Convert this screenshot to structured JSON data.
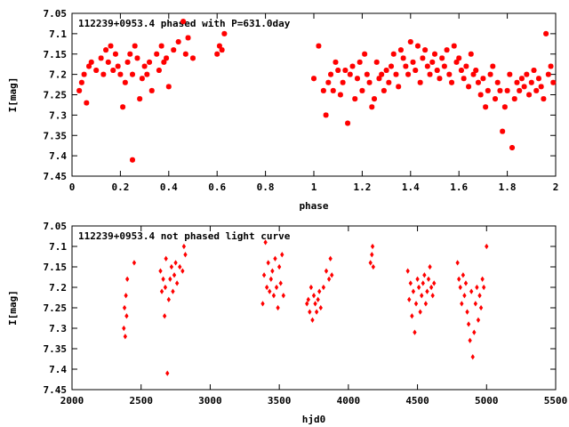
{
  "colors": {
    "points": "#ff0000",
    "axes": "#000000",
    "background": "#ffffff"
  },
  "chart_data": [
    {
      "type": "scatter",
      "title": "112239+0953.4 phased with P=631.0day",
      "xlabel": "phase",
      "ylabel": "I[mag]",
      "xlim": [
        0,
        2
      ],
      "ylim": [
        7.05,
        7.45
      ],
      "y_inverted": true,
      "grid": false,
      "legend": "none",
      "marker": "star",
      "xticks": [
        "0",
        "0.2",
        "0.4",
        "0.6",
        "0.8",
        "1",
        "1.2",
        "1.4",
        "1.6",
        "1.8",
        "2"
      ],
      "yticks": [
        "7.05",
        "7.1",
        "7.15",
        "7.2",
        "7.25",
        "7.3",
        "7.35",
        "7.4",
        "7.45"
      ],
      "x": [
        0.03,
        0.04,
        0.05,
        0.06,
        0.07,
        0.08,
        0.1,
        0.12,
        0.13,
        0.14,
        0.15,
        0.16,
        0.17,
        0.18,
        0.19,
        0.2,
        0.21,
        0.22,
        0.23,
        0.24,
        0.25,
        0.25,
        0.26,
        0.27,
        0.28,
        0.29,
        0.3,
        0.31,
        0.32,
        0.33,
        0.35,
        0.36,
        0.37,
        0.38,
        0.39,
        0.4,
        0.42,
        0.44,
        0.46,
        0.47,
        0.48,
        0.5,
        0.6,
        0.61,
        0.62,
        0.63,
        1.0,
        1.02,
        1.04,
        1.05,
        1.06,
        1.07,
        1.08,
        1.09,
        1.1,
        1.11,
        1.12,
        1.13,
        1.14,
        1.15,
        1.16,
        1.17,
        1.18,
        1.19,
        1.2,
        1.21,
        1.22,
        1.23,
        1.24,
        1.25,
        1.26,
        1.27,
        1.28,
        1.29,
        1.3,
        1.31,
        1.32,
        1.33,
        1.34,
        1.35,
        1.36,
        1.37,
        1.38,
        1.39,
        1.4,
        1.41,
        1.42,
        1.43,
        1.44,
        1.45,
        1.46,
        1.47,
        1.48,
        1.49,
        1.5,
        1.51,
        1.52,
        1.53,
        1.54,
        1.55,
        1.56,
        1.57,
        1.58,
        1.59,
        1.6,
        1.61,
        1.62,
        1.63,
        1.64,
        1.65,
        1.66,
        1.67,
        1.68,
        1.69,
        1.7,
        1.71,
        1.72,
        1.73,
        1.74,
        1.75,
        1.76,
        1.77,
        1.78,
        1.79,
        1.8,
        1.81,
        1.82,
        1.83,
        1.84,
        1.85,
        1.86,
        1.87,
        1.88,
        1.89,
        1.9,
        1.91,
        1.92,
        1.93,
        1.94,
        1.95,
        1.96,
        1.97,
        1.98,
        1.99
      ],
      "y": [
        7.24,
        7.22,
        7.2,
        7.27,
        7.18,
        7.17,
        7.19,
        7.16,
        7.2,
        7.14,
        7.17,
        7.13,
        7.19,
        7.15,
        7.18,
        7.2,
        7.28,
        7.22,
        7.17,
        7.15,
        7.41,
        7.2,
        7.13,
        7.16,
        7.26,
        7.21,
        7.18,
        7.2,
        7.17,
        7.24,
        7.15,
        7.19,
        7.13,
        7.17,
        7.16,
        7.23,
        7.14,
        7.12,
        7.07,
        7.15,
        7.11,
        7.16,
        7.15,
        7.13,
        7.14,
        7.1,
        7.21,
        7.13,
        7.24,
        7.3,
        7.22,
        7.2,
        7.24,
        7.17,
        7.19,
        7.25,
        7.22,
        7.19,
        7.32,
        7.2,
        7.18,
        7.26,
        7.21,
        7.17,
        7.24,
        7.15,
        7.2,
        7.22,
        7.28,
        7.26,
        7.17,
        7.21,
        7.2,
        7.24,
        7.19,
        7.22,
        7.18,
        7.15,
        7.2,
        7.23,
        7.14,
        7.16,
        7.18,
        7.2,
        7.12,
        7.17,
        7.19,
        7.13,
        7.22,
        7.16,
        7.14,
        7.18,
        7.2,
        7.17,
        7.15,
        7.19,
        7.21,
        7.16,
        7.18,
        7.14,
        7.2,
        7.22,
        7.13,
        7.17,
        7.16,
        7.19,
        7.21,
        7.18,
        7.23,
        7.15,
        7.2,
        7.19,
        7.22,
        7.25,
        7.21,
        7.28,
        7.24,
        7.2,
        7.18,
        7.26,
        7.22,
        7.24,
        7.34,
        7.28,
        7.24,
        7.2,
        7.38,
        7.26,
        7.22,
        7.24,
        7.21,
        7.23,
        7.2,
        7.25,
        7.22,
        7.19,
        7.24,
        7.21,
        7.23,
        7.26,
        7.1,
        7.2,
        7.18,
        7.22
      ]
    },
    {
      "type": "scatter",
      "title": "112239+0953.4 not phased light curve",
      "xlabel": "hjd0",
      "ylabel": "I[mag]",
      "xlim": [
        2000,
        5500
      ],
      "ylim": [
        7.05,
        7.45
      ],
      "y_inverted": true,
      "grid": false,
      "legend": "none",
      "marker": "diamond",
      "xticks": [
        "2000",
        "2500",
        "3000",
        "3500",
        "4000",
        "4500",
        "5000",
        "5500"
      ],
      "yticks": [
        "7.05",
        "7.1",
        "7.15",
        "7.2",
        "7.25",
        "7.3",
        "7.35",
        "7.4",
        "7.45"
      ],
      "x": [
        2375,
        2380,
        2385,
        2390,
        2395,
        2400,
        2450,
        2640,
        2650,
        2660,
        2670,
        2675,
        2680,
        2690,
        2700,
        2710,
        2720,
        2730,
        2740,
        2750,
        2760,
        2780,
        2800,
        2810,
        2820,
        3380,
        3390,
        3400,
        3410,
        3420,
        3430,
        3440,
        3450,
        3460,
        3470,
        3480,
        3490,
        3500,
        3510,
        3520,
        3530,
        3700,
        3710,
        3720,
        3730,
        3740,
        3750,
        3760,
        3770,
        3780,
        3790,
        3800,
        3820,
        3840,
        3860,
        3870,
        3880,
        4160,
        4170,
        4175,
        4180,
        4430,
        4440,
        4450,
        4460,
        4470,
        4480,
        4490,
        4500,
        4510,
        4520,
        4530,
        4540,
        4550,
        4560,
        4570,
        4580,
        4590,
        4600,
        4610,
        4620,
        4790,
        4800,
        4810,
        4820,
        4830,
        4840,
        4850,
        4860,
        4870,
        4880,
        4890,
        4900,
        4910,
        4920,
        4930,
        4940,
        4950,
        4960,
        4970,
        4980,
        5000
      ],
      "y": [
        7.3,
        7.25,
        7.32,
        7.22,
        7.27,
        7.18,
        7.14,
        7.16,
        7.21,
        7.18,
        7.27,
        7.2,
        7.13,
        7.41,
        7.23,
        7.18,
        7.15,
        7.21,
        7.17,
        7.14,
        7.19,
        7.15,
        7.16,
        7.1,
        7.12,
        7.24,
        7.17,
        7.09,
        7.2,
        7.14,
        7.21,
        7.18,
        7.16,
        7.22,
        7.13,
        7.2,
        7.25,
        7.15,
        7.19,
        7.12,
        7.22,
        7.24,
        7.23,
        7.26,
        7.2,
        7.28,
        7.22,
        7.24,
        7.26,
        7.23,
        7.21,
        7.25,
        7.2,
        7.16,
        7.18,
        7.13,
        7.17,
        7.14,
        7.12,
        7.1,
        7.15,
        7.16,
        7.23,
        7.19,
        7.27,
        7.21,
        7.31,
        7.24,
        7.18,
        7.2,
        7.26,
        7.22,
        7.19,
        7.17,
        7.24,
        7.21,
        7.18,
        7.15,
        7.2,
        7.22,
        7.19,
        7.14,
        7.18,
        7.2,
        7.24,
        7.17,
        7.22,
        7.19,
        7.26,
        7.29,
        7.33,
        7.21,
        7.37,
        7.31,
        7.24,
        7.2,
        7.28,
        7.22,
        7.25,
        7.18,
        7.2,
        7.1
      ]
    }
  ]
}
